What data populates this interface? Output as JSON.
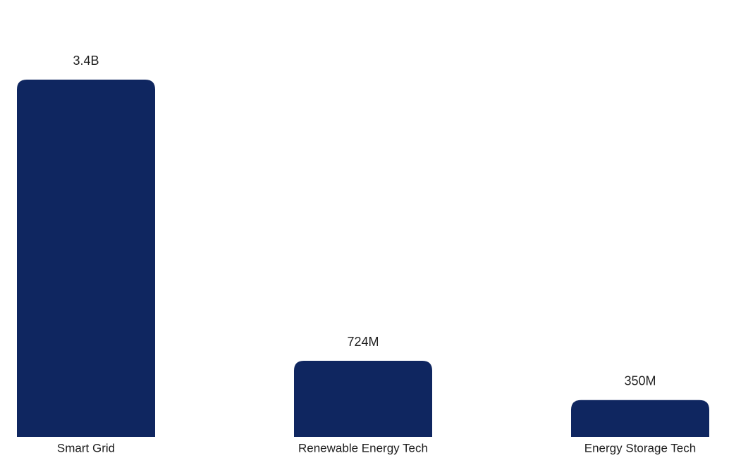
{
  "chart_data": {
    "type": "bar",
    "categories": [
      "Smart Grid",
      "Renewable Energy Tech",
      "Energy Storage Tech"
    ],
    "values": [
      3400000000,
      724000000,
      350000000
    ],
    "value_labels": [
      "3.4B",
      "724M",
      "350M"
    ],
    "ylim": [
      0,
      3400000000
    ],
    "grid": false,
    "legend": "none",
    "bar_color": "#0f2660"
  }
}
